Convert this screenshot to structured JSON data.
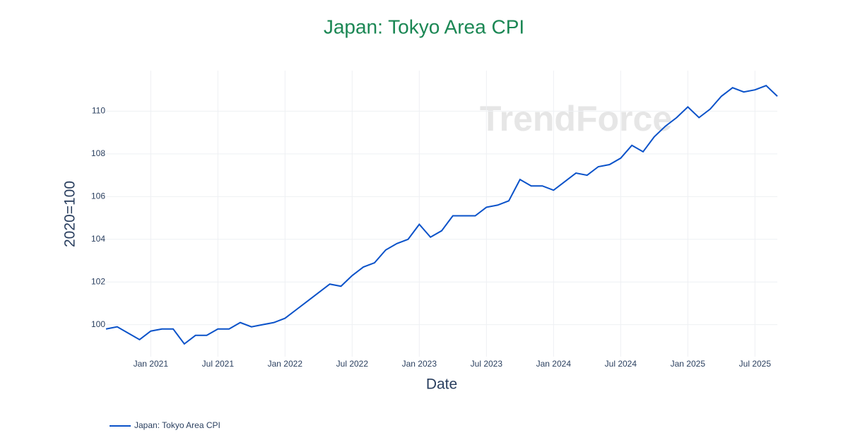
{
  "chart_data": {
    "type": "line",
    "title": "Japan: Tokyo Area CPI",
    "title_color": "#1b8754",
    "watermark": "TrendForce",
    "x_label": "Date",
    "y_label": "2020=100",
    "x": [
      "2020-09",
      "2020-10",
      "2020-11",
      "2020-12",
      "2021-01",
      "2021-02",
      "2021-03",
      "2021-04",
      "2021-05",
      "2021-06",
      "2021-07",
      "2021-08",
      "2021-09",
      "2021-10",
      "2021-11",
      "2021-12",
      "2022-01",
      "2022-02",
      "2022-03",
      "2022-04",
      "2022-05",
      "2022-06",
      "2022-07",
      "2022-08",
      "2022-09",
      "2022-10",
      "2022-11",
      "2022-12",
      "2023-01",
      "2023-02",
      "2023-03",
      "2023-04",
      "2023-05",
      "2023-06",
      "2023-07",
      "2023-08",
      "2023-09",
      "2023-10",
      "2023-11",
      "2023-12",
      "2024-01",
      "2024-02",
      "2024-03",
      "2024-04",
      "2024-05",
      "2024-06",
      "2024-07",
      "2024-08",
      "2024-09",
      "2024-10",
      "2024-11",
      "2024-12",
      "2025-01",
      "2025-02",
      "2025-03",
      "2025-04",
      "2025-05",
      "2025-06",
      "2025-07",
      "2025-08",
      "2025-09"
    ],
    "series": [
      {
        "name": "Japan: Tokyo Area CPI",
        "color": "#0a52c9",
        "values": [
          99.8,
          99.9,
          99.6,
          99.3,
          99.7,
          99.8,
          99.8,
          99.1,
          99.5,
          99.5,
          99.8,
          99.8,
          100.1,
          99.9,
          100.0,
          100.1,
          100.3,
          100.7,
          101.1,
          101.5,
          101.9,
          101.8,
          102.3,
          102.7,
          102.9,
          103.5,
          103.8,
          104.0,
          104.7,
          104.1,
          104.4,
          105.1,
          105.1,
          105.1,
          105.5,
          105.6,
          105.8,
          106.8,
          106.5,
          106.5,
          106.3,
          106.7,
          107.1,
          107.0,
          107.4,
          107.5,
          107.8,
          108.4,
          108.1,
          108.8,
          109.3,
          109.7,
          110.2,
          109.7,
          110.1,
          110.7,
          111.1,
          110.9,
          111.0,
          111.2,
          110.7
        ]
      }
    ],
    "xlim": [
      "2020-09",
      "2025-09"
    ],
    "xticks": [
      {
        "value": "2021-01",
        "label": "Jan 2021"
      },
      {
        "value": "2021-07",
        "label": "Jul 2021"
      },
      {
        "value": "2022-01",
        "label": "Jan 2022"
      },
      {
        "value": "2022-07",
        "label": "Jul 2022"
      },
      {
        "value": "2023-01",
        "label": "Jan 2023"
      },
      {
        "value": "2023-07",
        "label": "Jul 2023"
      },
      {
        "value": "2024-01",
        "label": "Jan 2024"
      },
      {
        "value": "2024-07",
        "label": "Jul 2024"
      },
      {
        "value": "2025-01",
        "label": "Jan 2025"
      },
      {
        "value": "2025-07",
        "label": "Jul 2025"
      }
    ],
    "ylim": [
      98.5,
      111.9
    ],
    "yticks": [
      100,
      102,
      104,
      106,
      108,
      110
    ],
    "grid": true,
    "legend": "bottom-left"
  }
}
